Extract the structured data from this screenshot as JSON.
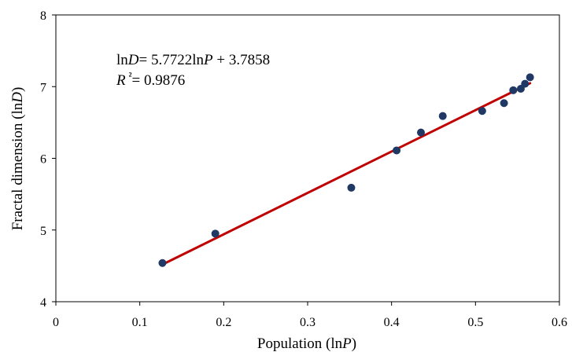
{
  "chart_data": {
    "type": "scatter",
    "title": "",
    "xlabel": {
      "prefix": "Population (ln",
      "var": "P",
      "suffix": ")"
    },
    "ylabel": {
      "prefix": "Fractal dimension (ln",
      "var": "D",
      "suffix": ")"
    },
    "xlim": [
      0,
      0.6
    ],
    "ylim": [
      4,
      8
    ],
    "x_ticks": [
      0,
      0.1,
      0.2,
      0.3,
      0.4,
      0.5,
      0.6
    ],
    "x_tick_labels": [
      "0",
      "0.1",
      "0.2",
      "0.3",
      "0.4",
      "0.5",
      "0.6"
    ],
    "y_ticks": [
      4,
      5,
      6,
      7,
      8
    ],
    "y_tick_labels": [
      "4",
      "5",
      "6",
      "7",
      "8"
    ],
    "grid": false,
    "legend": false,
    "series": [
      {
        "marker_color": "#1F3864",
        "x": [
          0.127,
          0.19,
          0.352,
          0.406,
          0.435,
          0.461,
          0.508,
          0.534,
          0.545,
          0.554,
          0.559,
          0.565
        ],
        "y": [
          4.54,
          4.95,
          5.59,
          6.11,
          6.36,
          6.59,
          6.66,
          6.77,
          6.95,
          6.97,
          7.04,
          7.13
        ]
      }
    ],
    "trendline": {
      "color": "#C00000",
      "slope": 5.7722,
      "intercept": 3.7858,
      "x_range": [
        0.127,
        0.565
      ]
    },
    "annotation": {
      "equation": {
        "lhs_prefix": "ln",
        "lhs_var": "D",
        "mid": "= 5.7722ln",
        "rhs_var": "P",
        "rhs_rest": " + 3.7858"
      },
      "r_squared": {
        "var": "R",
        "sup": "²",
        "rest": "= 0.9876"
      }
    }
  }
}
